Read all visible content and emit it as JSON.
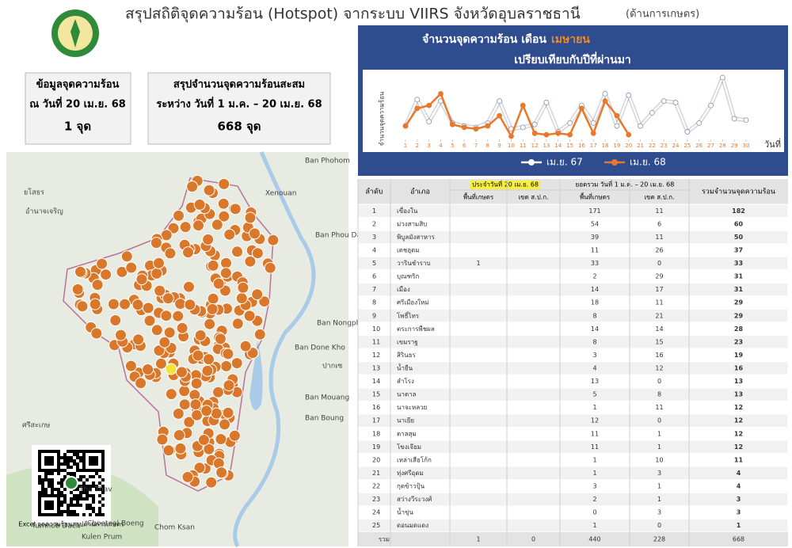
{
  "header": {
    "title": "สรุปสถิติจุดความร้อน (Hotspot) จากระบบ VIIRS จังหวัดอุบลราชธานี",
    "subtitle": "(ด้านการเกษตร)"
  },
  "cards": [
    {
      "lines": [
        "ข้อมูลจุดความร้อน",
        "ณ วันที่ 20 เม.ย. 68",
        "1 จุด"
      ]
    },
    {
      "lines": [
        "สรุปจำนวนจุดความร้อนสะสม",
        "ระหว่าง วันที่ 1 ม.ค. – 20 เม.ย. 68",
        "668 จุด"
      ]
    }
  ],
  "map": {
    "labels": [
      "Ban Phohom",
      "ยโสธร",
      "Xenouan",
      "อำนาจเจริญ",
      "Ban Phou Daotieng Noi",
      "Ban Nongphang",
      "Ban Done Kho",
      "ปากเซ",
      "Ban Mouang",
      "Ban Boung",
      "ศรีสะเกษ",
      "Tha Thav",
      "Choeteal Boeng",
      "Tumnob Dach",
      "Chom Ksan",
      "Kulen Prum"
    ],
    "qr_caption": "Excel จุดความร้อนสรุปด้านการเกษตร"
  },
  "chart_data": {
    "type": "line",
    "title": "จำนวนจุดความร้อน เดือน",
    "title_highlight": "เมษายน",
    "subtitle": "เปรียบเทียบกับปีที่ผ่านมา",
    "y_label": "จำนวนจุดความร้อน",
    "x_label": "วันที่",
    "x": [
      1,
      2,
      3,
      4,
      5,
      6,
      7,
      8,
      9,
      10,
      11,
      12,
      13,
      14,
      15,
      16,
      17,
      18,
      19,
      20,
      21,
      22,
      23,
      24,
      25,
      26,
      27,
      28,
      29,
      30
    ],
    "xticks": [
      1,
      2,
      3,
      4,
      5,
      6,
      7,
      8,
      9,
      10,
      11,
      12,
      13,
      14,
      15,
      16,
      17,
      18,
      19,
      20,
      21,
      22,
      23,
      24,
      25,
      26,
      27,
      28,
      29,
      30
    ],
    "xlim": [
      1,
      30
    ],
    "ylim": [
      0,
      40
    ],
    "series": [
      {
        "name": "เม.ย. 67",
        "color": "#ffffff",
        "values": [
          7,
          25,
          10,
          24,
          9,
          7,
          6,
          9,
          24,
          5,
          6,
          8,
          23,
          3,
          9,
          21,
          9,
          29,
          7,
          28,
          7,
          16,
          24,
          23,
          3,
          9,
          21,
          40,
          12,
          11
        ]
      },
      {
        "name": "เม.ย. 68",
        "color": "#e8782a",
        "values": [
          7,
          19,
          21,
          29,
          8,
          6,
          5,
          7,
          14,
          0,
          21,
          2,
          1,
          2,
          1,
          19,
          2,
          24,
          14,
          1,
          null,
          null,
          null,
          null,
          null,
          null,
          null,
          null,
          null,
          null
        ]
      }
    ]
  },
  "table": {
    "headers": {
      "rank": "ลำดับ",
      "district": "อำเภอ",
      "group_daily": "ประจำวันที่ 20 เม.ย. 68",
      "group_total": "ยอดรวม วันที่ 1 ม.ค. – 20 เม.ย. 68",
      "sub": [
        "พื้นที่เกษตร",
        "เขต ส.ป.ก.",
        "พื้นที่เกษตร",
        "เขต ส.ป.ก."
      ],
      "total": "รวมจำนวนจุดความร้อน"
    },
    "rows": [
      [
        1,
        "เขื่องใน",
        null,
        null,
        171,
        11,
        182
      ],
      [
        2,
        "ม่วงสามสิบ",
        null,
        null,
        54,
        6,
        60
      ],
      [
        3,
        "พิบูลมังสาหาร",
        null,
        null,
        39,
        11,
        50
      ],
      [
        4,
        "เดชอุดม",
        null,
        null,
        11,
        26,
        37
      ],
      [
        5,
        "วารินชำราบ",
        1,
        null,
        33,
        0,
        33
      ],
      [
        6,
        "บุณฑริก",
        null,
        null,
        2,
        29,
        31
      ],
      [
        7,
        "เมือง",
        null,
        null,
        14,
        17,
        31
      ],
      [
        8,
        "ศรีเมืองใหม่",
        null,
        null,
        18,
        11,
        29
      ],
      [
        9,
        "โพธิ์ไทร",
        null,
        null,
        8,
        21,
        29
      ],
      [
        10,
        "ตระการพืชผล",
        null,
        null,
        14,
        14,
        28
      ],
      [
        11,
        "เขมราฐ",
        null,
        null,
        8,
        15,
        23
      ],
      [
        12,
        "สิรินธร",
        null,
        null,
        3,
        16,
        19
      ],
      [
        13,
        "น้ำยืน",
        null,
        null,
        4,
        12,
        16
      ],
      [
        14,
        "สำโรง",
        null,
        null,
        13,
        0,
        13
      ],
      [
        15,
        "นาตาล",
        null,
        null,
        5,
        8,
        13
      ],
      [
        16,
        "นาจะหลวย",
        null,
        null,
        1,
        11,
        12
      ],
      [
        17,
        "นาเยีย",
        null,
        null,
        12,
        0,
        12
      ],
      [
        18,
        "ตาลสุม",
        null,
        null,
        11,
        1,
        12
      ],
      [
        19,
        "โขงเจียม",
        null,
        null,
        11,
        1,
        12
      ],
      [
        20,
        "เหล่าเสือโก้ก",
        null,
        null,
        1,
        10,
        11
      ],
      [
        21,
        "ทุ่งศรีอุดม",
        null,
        null,
        1,
        3,
        4
      ],
      [
        22,
        "กุดข้าวปุ้น",
        null,
        null,
        3,
        1,
        4
      ],
      [
        23,
        "สว่างวีระวงศ์",
        null,
        null,
        2,
        1,
        3
      ],
      [
        24,
        "น้ำขุ่น",
        null,
        null,
        0,
        3,
        3
      ],
      [
        25,
        "ดอนมดแดง",
        null,
        null,
        1,
        0,
        1
      ]
    ],
    "footer": [
      "รวม",
      1,
      0,
      440,
      228,
      668
    ]
  }
}
